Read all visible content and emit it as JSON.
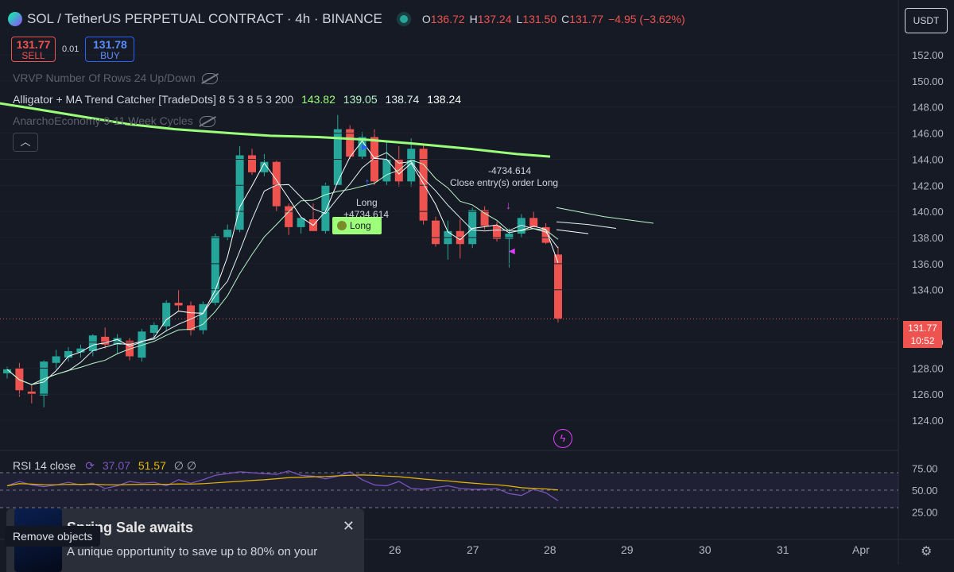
{
  "header": {
    "symbol_title": "SOL / TetherUS PERPETUAL CONTRACT · 4h · BINANCE",
    "ohlc": [
      {
        "k": "O",
        "v": "136.72"
      },
      {
        "k": "H",
        "v": "137.24"
      },
      {
        "k": "L",
        "v": "131.50"
      },
      {
        "k": "C",
        "v": "131.77"
      }
    ],
    "change": "−4.95 (−3.62%)"
  },
  "trade": {
    "sell_price": "131.77",
    "sell_label": "SELL",
    "spread": "0.01",
    "buy_price": "131.78",
    "buy_label": "BUY"
  },
  "indicators": {
    "vrvp": "VRVP Number Of Rows 24 Up/Down",
    "alligator": "Alligator + MA Trend Catcher [TradeDots] 8 5 3 8 5 3 200",
    "alligator_values": [
      "143.82",
      "139.05",
      "138.74",
      "138.24"
    ],
    "anarcho": "AnarchoEconomy 9-11 Week Cycles"
  },
  "currency_button": "USDT",
  "price_tag": {
    "price": "131.77",
    "time": "10:52"
  },
  "annotations": {
    "close_value": "-4734.614",
    "close_label": "Close entry(s) order Long",
    "long_label": "Long",
    "long_value": "+4734.614",
    "long_badge": "Long"
  },
  "rsi": {
    "label": "RSI 14 close",
    "value1": "37.07",
    "value2": "51.57",
    "extra": "∅ ∅"
  },
  "popup": {
    "title": "Spring Sale awaits",
    "text": "A unique opportunity to save up to 80% on your"
  },
  "tooltip": "Remove objects",
  "price_axis": [
    "152.00",
    "150.00",
    "148.00",
    "146.00",
    "144.00",
    "142.00",
    "140.00",
    "138.00",
    "136.00",
    "134.00",
    "130.00",
    "128.00",
    "126.00",
    "124.00"
  ],
  "rsi_axis": [
    "75.00",
    "50.00",
    "25.00"
  ],
  "time_axis": [
    "26",
    "27",
    "28",
    "29",
    "30",
    "31",
    "Apr"
  ],
  "icons": {
    "gear": "settings-icon",
    "bolt": "lightning-icon",
    "eye": "eye-hidden-icon"
  },
  "colors": {
    "up": "#26a69a",
    "down": "#ef5350",
    "ma200": "#9cff7a",
    "rsi": "#7e57c2",
    "rsi_ma": "#e6b800",
    "bg": "#161a25"
  },
  "chart_data": {
    "type": "candlestick",
    "title": "SOL / TetherUS PERPETUAL CONTRACT · 4h · BINANCE",
    "ylim": [
      122.5,
      153.5
    ],
    "candles": [
      [
        127.6,
        128.1,
        127.2,
        127.9
      ],
      [
        128.0,
        128.4,
        125.8,
        126.3
      ],
      [
        126.2,
        126.8,
        125.3,
        126.0
      ],
      [
        125.9,
        128.6,
        125.0,
        128.5
      ],
      [
        128.4,
        129.4,
        127.9,
        128.9
      ],
      [
        128.8,
        129.6,
        128.5,
        129.3
      ],
      [
        129.2,
        129.8,
        128.8,
        129.5
      ],
      [
        129.3,
        130.6,
        128.9,
        130.5
      ],
      [
        130.4,
        131.1,
        129.5,
        129.8
      ],
      [
        129.8,
        130.6,
        129.1,
        130.3
      ],
      [
        130.1,
        130.3,
        128.6,
        128.9
      ],
      [
        128.8,
        131.0,
        128.5,
        130.8
      ],
      [
        130.7,
        131.5,
        130.2,
        131.3
      ],
      [
        131.2,
        133.2,
        130.8,
        133.0
      ],
      [
        133.0,
        134.0,
        132.4,
        132.8
      ],
      [
        132.8,
        133.1,
        130.5,
        130.9
      ],
      [
        130.9,
        133.1,
        130.6,
        132.9
      ],
      [
        133.0,
        138.3,
        132.8,
        138.1
      ],
      [
        138.0,
        139.0,
        137.8,
        138.6
      ],
      [
        138.6,
        145.0,
        138.4,
        144.3
      ],
      [
        144.3,
        144.8,
        142.8,
        143.0
      ],
      [
        143.0,
        144.4,
        142.7,
        143.8
      ],
      [
        143.8,
        143.9,
        140.0,
        140.4
      ],
      [
        140.4,
        140.6,
        138.2,
        138.8
      ],
      [
        138.8,
        139.6,
        138.3,
        139.5
      ],
      [
        139.4,
        140.6,
        138.5,
        138.5
      ],
      [
        138.5,
        142.2,
        138.3,
        142.0
      ],
      [
        142.0,
        147.4,
        142.0,
        146.3
      ],
      [
        146.3,
        146.6,
        144.0,
        144.2
      ],
      [
        144.2,
        146.1,
        144.0,
        145.7
      ],
      [
        145.7,
        146.3,
        142.0,
        142.3
      ],
      [
        142.3,
        145.4,
        142.0,
        144.0
      ],
      [
        144.0,
        145.0,
        141.9,
        142.3
      ],
      [
        142.3,
        145.6,
        141.9,
        144.8
      ],
      [
        144.8,
        145.1,
        139.0,
        139.3
      ],
      [
        139.3,
        139.6,
        137.3,
        137.5
      ],
      [
        137.5,
        139.3,
        136.3,
        138.5
      ],
      [
        138.5,
        139.4,
        136.4,
        137.5
      ],
      [
        137.5,
        140.3,
        137.2,
        140.1
      ],
      [
        140.1,
        140.4,
        138.6,
        138.9
      ],
      [
        138.9,
        139.2,
        137.7,
        137.9
      ],
      [
        137.9,
        138.7,
        135.7,
        138.3
      ],
      [
        138.3,
        139.8,
        138.0,
        139.5
      ],
      [
        139.5,
        140.0,
        138.8,
        138.8
      ],
      [
        138.8,
        139.1,
        137.5,
        137.6
      ],
      [
        136.7,
        137.3,
        131.5,
        131.8
      ]
    ],
    "ma200": [
      [
        148.3,
        -2
      ],
      [
        147.9,
        40
      ],
      [
        147.3,
        100
      ],
      [
        146.7,
        160
      ],
      [
        146.3,
        220
      ],
      [
        146.0,
        290
      ],
      [
        145.8,
        340
      ],
      [
        145.7,
        400
      ],
      [
        145.5,
        460
      ],
      [
        145.2,
        520
      ],
      [
        144.8,
        590
      ],
      [
        144.4,
        650
      ],
      [
        144.2,
        692
      ]
    ],
    "rsi": [
      55,
      60,
      56,
      54,
      56,
      59,
      56,
      58,
      52,
      55,
      60,
      58,
      59,
      55,
      62,
      58,
      62,
      67,
      69,
      71,
      70,
      69,
      68,
      72,
      67,
      66,
      63,
      66,
      71,
      62,
      56,
      55,
      60,
      52,
      51,
      53,
      55,
      52,
      51,
      51,
      52,
      46,
      44,
      51,
      47,
      38
    ]
  }
}
